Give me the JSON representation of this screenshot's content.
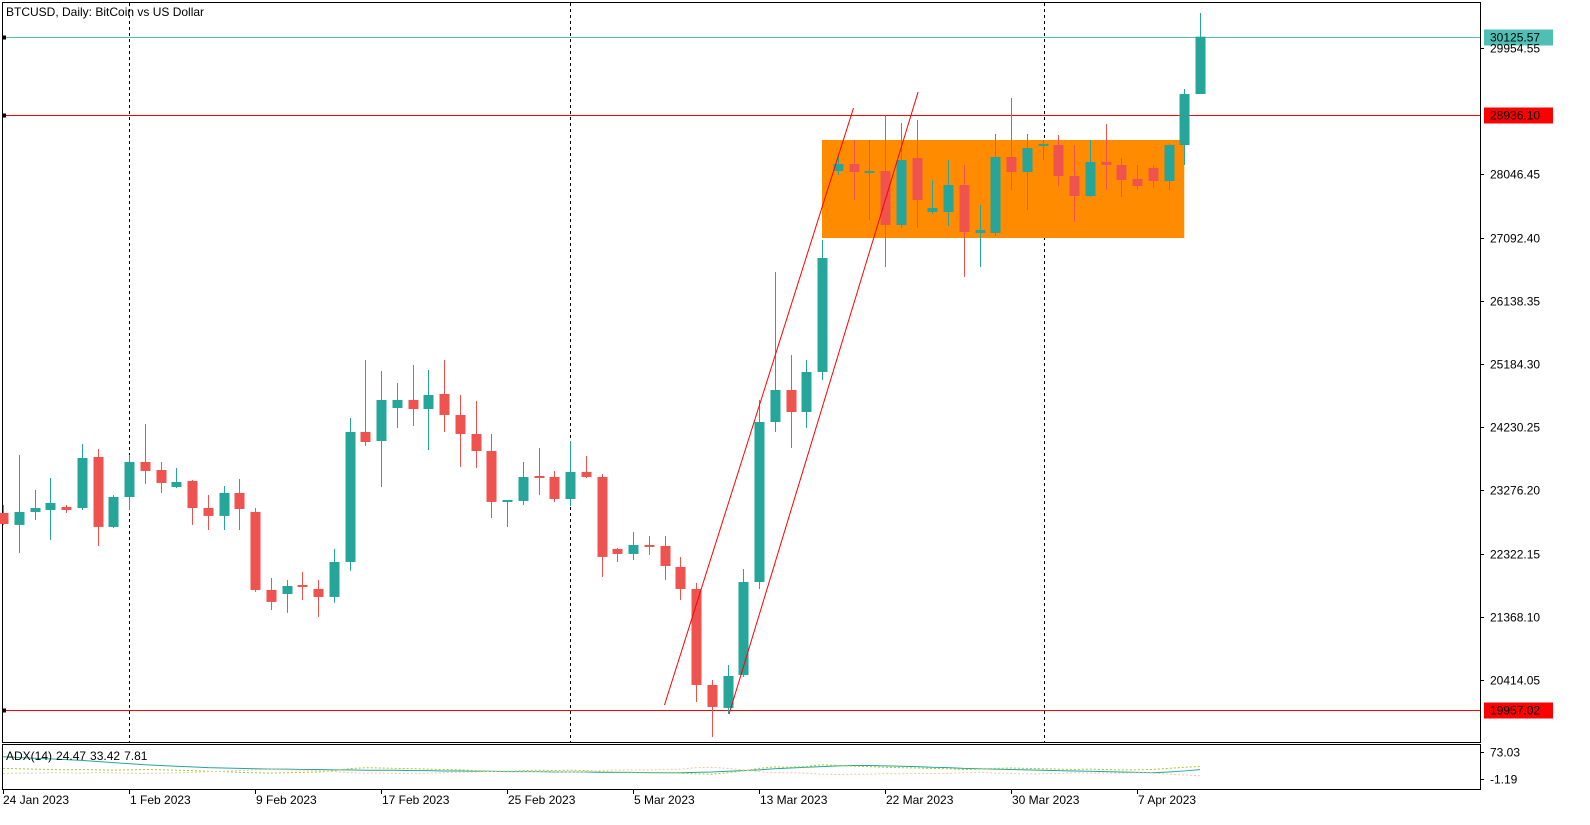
{
  "chart_data": [
    {
      "type": "candlestick",
      "title": "BTCUSD, Daily:  BitCoin vs US Dollar",
      "categories": [
        "24 Jan 2023",
        null,
        null,
        null,
        null,
        null,
        null,
        null,
        "1 Feb 2023",
        null,
        null,
        null,
        null,
        null,
        null,
        null,
        "9 Feb 2023",
        null,
        null,
        null,
        null,
        null,
        null,
        null,
        "17 Feb 2023",
        null,
        null,
        null,
        null,
        null,
        null,
        null,
        "25 Feb 2023",
        null,
        null,
        null,
        null,
        null,
        null,
        null,
        "5 Mar 2023",
        null,
        null,
        null,
        null,
        null,
        null,
        null,
        "13 Mar 2023",
        null,
        null,
        null,
        null,
        null,
        null,
        null,
        "22 Mar 2023",
        null,
        null,
        null,
        null,
        null,
        null,
        null,
        "30 Mar 2023",
        null,
        null,
        null,
        null,
        null,
        null,
        null,
        "7 Apr 2023",
        null,
        null,
        null,
        null
      ],
      "open": [
        22937,
        22756,
        22952,
        22982,
        23027,
        23012,
        23782,
        22726,
        23178,
        23707,
        23586,
        23329,
        23420,
        23012,
        22892,
        23239,
        22952,
        21775,
        21714,
        21850,
        21790,
        21669,
        22197,
        24159,
        24023,
        24521,
        24642,
        24506,
        24733,
        24416,
        24129,
        23872,
        23103,
        23118,
        23495,
        23480,
        23148,
        23556,
        23480,
        22394,
        22318,
        22454,
        22439,
        22122,
        21790,
        20341,
        19994,
        20492,
        21895,
        24310,
        24793,
        24461,
        25065,
        28098,
        28204,
        28068,
        28098,
        27283,
        28294,
        27480,
        27480,
        27887,
        27163,
        27163,
        28310,
        28083,
        28476,
        28491,
        28023,
        27721,
        28234,
        28189,
        27978,
        28144,
        27947,
        28491,
        29260
      ],
      "high": [
        23057,
        23812,
        23284,
        23465,
        23057,
        23978,
        23903,
        23208,
        23812,
        24280,
        23707,
        23616,
        23435,
        23208,
        23344,
        23450,
        23012,
        21956,
        21926,
        22046,
        21926,
        22394,
        24371,
        25246,
        25080,
        24899,
        25170,
        25095,
        25246,
        24718,
        24627,
        24129,
        23133,
        23707,
        23918,
        23571,
        24023,
        23797,
        23525,
        22409,
        22650,
        22590,
        22590,
        22273,
        21880,
        20416,
        20643,
        22092,
        24642,
        26574,
        25321,
        25246,
        27057,
        28340,
        28566,
        28566,
        28943,
        28823,
        28868,
        27962,
        28264,
        28189,
        27585,
        28657,
        29200,
        28657,
        28566,
        28642,
        28491,
        28566,
        28808,
        28294,
        28189,
        28189,
        28521,
        29336,
        30483
      ],
      "low": [
        22756,
        22333,
        22831,
        22529,
        22937,
        22982,
        22439,
        22710,
        22982,
        23374,
        23239,
        23314,
        22756,
        22680,
        22680,
        22680,
        21745,
        21473,
        21428,
        21624,
        21367,
        21579,
        22062,
        23948,
        23329,
        24220,
        24250,
        23888,
        24159,
        23631,
        23616,
        22861,
        22726,
        23057,
        23208,
        23103,
        23042,
        23465,
        21971,
        22197,
        22228,
        22303,
        21926,
        21624,
        20084,
        19556,
        19903,
        20462,
        21790,
        24159,
        23918,
        24220,
        24944,
        28038,
        27661,
        27359,
        26649,
        27238,
        27238,
        27449,
        27268,
        26499,
        26649,
        27117,
        27812,
        27510,
        28264,
        27872,
        27329,
        27706,
        27812,
        27706,
        27812,
        27842,
        27812,
        28189,
        29260
      ],
      "close": [
        22771,
        22952,
        23012,
        23088,
        22982,
        23767,
        22726,
        23178,
        23707,
        23571,
        23390,
        23405,
        23012,
        22892,
        23239,
        22997,
        21775,
        21594,
        21835,
        21820,
        21669,
        22197,
        24159,
        24008,
        24642,
        24642,
        24506,
        24718,
        24416,
        24129,
        23872,
        23103,
        23133,
        23480,
        23465,
        23148,
        23556,
        23480,
        22273,
        22318,
        22454,
        22424,
        22137,
        21790,
        20341,
        20009,
        20477,
        21895,
        24310,
        24793,
        24461,
        25065,
        26785,
        28204,
        28083,
        28098,
        27283,
        28264,
        27661,
        27540,
        27887,
        27178,
        27208,
        28310,
        28083,
        28445,
        28506,
        28023,
        27721,
        28234,
        28189,
        27962,
        27872,
        27947,
        28491,
        29260,
        30125.57
      ],
      "up_color": "#26a69a",
      "down_color": "#ef5350",
      "ylim": [
        19480,
        30634
      ],
      "yticks": [
        29954.55,
        28046.45,
        {
          "value": 27092.4,
          "label": "27092.40"
        },
        26138.35,
        {
          "value": 25184.3,
          "label": "25184.30"
        },
        24230.25,
        {
          "value": 23276.2,
          "label": "23276.20"
        },
        22322.15,
        {
          "value": 21368.1,
          "label": "21368.10"
        },
        20414.05
      ],
      "hlines": [
        {
          "value": 30125.57,
          "color": "#4fbfb4"
        },
        {
          "value": 28936.1,
          "label": "28936.10",
          "color": "#ff0000"
        },
        {
          "value": 19957.02,
          "color": "#ff0000"
        }
      ],
      "rectangle": {
        "start": 52,
        "end": 75,
        "top": 28566,
        "bottom": 27087,
        "color": "#ff8c00"
      },
      "trendlines": [
        {
          "from": [
            42,
            20039
          ],
          "to": [
            54,
            29049
          ]
        },
        {
          "from": [
            46.1,
            19903
          ],
          "to": [
            58.1,
            29291
          ]
        }
      ],
      "trendline_color": "#ff0000"
    },
    {
      "type": "line",
      "title": "ADX(14)",
      "series": [
        {
          "color": "#26a69a",
          "dash": false,
          "values": [
            60,
            58,
            56,
            54,
            52,
            50,
            47,
            44,
            41,
            38,
            36,
            34,
            32,
            30,
            29,
            28,
            27,
            26,
            26,
            25,
            25,
            24,
            24,
            23,
            23,
            23,
            22,
            22,
            21,
            21,
            20,
            20,
            19,
            19,
            19,
            18,
            18,
            18,
            17,
            17,
            17,
            16,
            16,
            16,
            17,
            18,
            20,
            22,
            24,
            27,
            29,
            31,
            33,
            35,
            36,
            36,
            35,
            34,
            33,
            31,
            30,
            28,
            27,
            26,
            25,
            24,
            23,
            22,
            21,
            20,
            19,
            18,
            17,
            16,
            18,
            21,
            24.47
          ]
        },
        {
          "color": "#9acd32",
          "dash": true,
          "values": [
            28,
            27,
            26,
            25,
            24,
            25,
            24,
            23,
            24,
            25,
            24,
            23,
            22,
            20,
            19,
            17,
            16,
            15,
            16,
            17,
            18,
            22,
            27,
            30,
            29,
            28,
            27,
            26,
            25,
            24,
            22,
            21,
            20,
            22,
            23,
            22,
            23,
            22,
            19,
            18,
            17,
            17,
            16,
            15,
            13,
            12,
            16,
            21,
            28,
            32,
            31,
            33,
            38,
            36,
            34,
            33,
            31,
            30,
            29,
            28,
            27,
            25,
            26,
            28,
            29,
            28,
            27,
            26,
            25,
            26,
            25,
            24,
            24,
            25,
            28,
            31,
            33.42
          ]
        },
        {
          "color": "#f0c8a0",
          "dash": true,
          "values": [
            14,
            15,
            15,
            16,
            16,
            15,
            17,
            16,
            15,
            14,
            15,
            16,
            17,
            19,
            20,
            22,
            24,
            25,
            24,
            23,
            22,
            19,
            16,
            15,
            15,
            14,
            14,
            15,
            16,
            17,
            18,
            20,
            21,
            20,
            19,
            19,
            18,
            19,
            22,
            24,
            24,
            24,
            25,
            26,
            30,
            31,
            28,
            24,
            19,
            16,
            16,
            15,
            12,
            11,
            12,
            12,
            14,
            13,
            14,
            14,
            14,
            16,
            17,
            15,
            14,
            13,
            13,
            14,
            16,
            15,
            15,
            15,
            16,
            15,
            12,
            10,
            7.81
          ]
        }
      ],
      "ylim": [
        -31.4,
        92.3
      ],
      "yticks": [
        73.03,
        -1.19
      ]
    }
  ]
}
